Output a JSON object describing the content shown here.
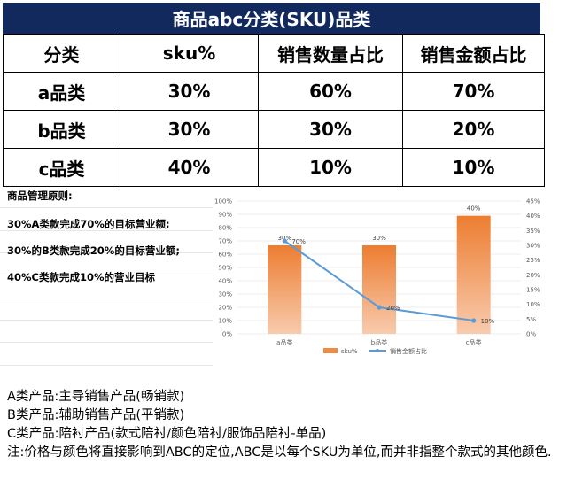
{
  "sheet": {
    "title": "商品abc分类(SKU)品类",
    "headers": [
      "分类",
      "sku%",
      "销售数量占比",
      "销售金额占比"
    ],
    "rows": [
      [
        "a品类",
        "30%",
        "60%",
        "70%"
      ],
      [
        "b品类",
        "30%",
        "30%",
        "20%"
      ],
      [
        "c品类",
        "40%",
        "10%",
        "10%"
      ]
    ]
  },
  "principles": {
    "title": "商品管理原则:",
    "lines": [
      "30%A类款完成70%的目标营业额;",
      "30%的B类款完成20%的目标营业额;",
      "40%C类款完成10%的营业目标"
    ]
  },
  "chart_data": {
    "type": "bar",
    "categories": [
      "a品类",
      "b品类",
      "c品类"
    ],
    "series": [
      {
        "name": "sku%",
        "type": "bar",
        "axis": "left",
        "values": [
          30,
          30,
          40
        ],
        "labels": [
          "30%",
          "30%",
          "40%"
        ],
        "color": "#ee8c45"
      },
      {
        "name": "销售金额占比",
        "type": "line",
        "axis": "right",
        "values": [
          70,
          20,
          10
        ],
        "labels": [
          "70%",
          "20%",
          "10%"
        ],
        "color": "#5b9bd5"
      }
    ],
    "left_axis": {
      "min": 0,
      "max": 100,
      "step": 10,
      "ticks": [
        "0%",
        "10%",
        "20%",
        "30%",
        "40%",
        "50%",
        "60%",
        "70%",
        "80%",
        "90%",
        "100%"
      ]
    },
    "right_axis": {
      "min": 0,
      "max": 45,
      "step": 5,
      "ticks": [
        "0%",
        "5%",
        "10%",
        "15%",
        "20%",
        "25%",
        "30%",
        "35%",
        "40%",
        "45%"
      ]
    },
    "legend": "bottom",
    "grid": true
  },
  "notes": [
    "A类产品:主导销售产品(畅销款)",
    "B类产品:辅助销售产品(平销款)",
    "C类产品:陪衬产品(款式陪衬/颜色陪衬/服饰品陪衬-单品)",
    "注:价格与颜色将直接影响到ABC的定位,ABC是以每个SKU为单位,而并非指整个款式的其他颜色."
  ]
}
